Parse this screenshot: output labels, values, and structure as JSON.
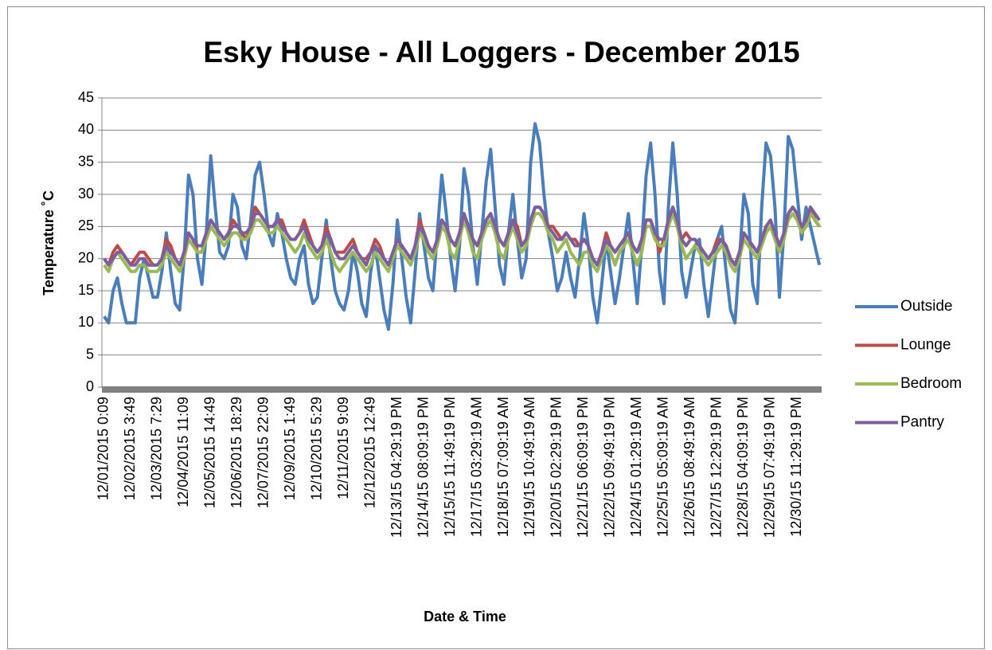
{
  "chart_data": {
    "type": "line",
    "title": "Esky House - All Loggers - December 2015",
    "x_label": "Date & Time",
    "y_label": "Temperature ˚C",
    "categories": [
      "12/01/2015 0:09",
      null,
      null,
      null,
      null,
      null,
      "12/02/2015 3:49",
      null,
      null,
      null,
      null,
      null,
      "12/03/2015 7:29",
      null,
      null,
      null,
      null,
      null,
      "12/04/2015 11:09",
      null,
      null,
      null,
      null,
      null,
      "12/05/2015 14:49",
      null,
      null,
      null,
      null,
      null,
      "12/06/2015 18:29",
      null,
      null,
      null,
      null,
      null,
      "12/07/2015 22:09",
      null,
      null,
      null,
      null,
      null,
      "12/09/2015 1:49",
      null,
      null,
      null,
      null,
      null,
      "12/10/2015 5:29",
      null,
      null,
      null,
      null,
      null,
      "12/11/2015 9:09",
      null,
      null,
      null,
      null,
      null,
      "12/12/2015 12:49",
      null,
      null,
      null,
      null,
      null,
      "12/13/15 04:29:19 PM",
      null,
      null,
      null,
      null,
      null,
      "12/14/15 08:09:19 PM",
      null,
      null,
      null,
      null,
      null,
      "12/15/15 11:49:19 PM",
      null,
      null,
      null,
      null,
      null,
      "12/17/15 03:29:19 AM",
      null,
      null,
      null,
      null,
      null,
      "12/18/15 07:09:19 AM",
      null,
      null,
      null,
      null,
      null,
      "12/19/15 10:49:19 AM",
      null,
      null,
      null,
      null,
      null,
      "12/20/15 02:29:19 PM",
      null,
      null,
      null,
      null,
      null,
      "12/21/15 06:09:19 PM",
      null,
      null,
      null,
      null,
      null,
      "12/22/15 09:49:19 PM",
      null,
      null,
      null,
      null,
      null,
      "12/24/15 01:29:19 AM",
      null,
      null,
      null,
      null,
      null,
      "12/25/15 05:09:19 AM",
      null,
      null,
      null,
      null,
      null,
      "12/26/15 08:49:19 AM",
      null,
      null,
      null,
      null,
      null,
      "12/27/15 12:29:19 PM",
      null,
      null,
      null,
      null,
      null,
      "12/28/15 04:09:19 PM",
      null,
      null,
      null,
      null,
      null,
      "12/29/15 07:49:19 PM",
      null,
      null,
      null,
      null,
      null,
      "12/30/15 11:29:19 PM",
      null,
      null,
      null,
      null,
      null
    ],
    "series": [
      {
        "name": "Outside",
        "color": "#4a7ebb",
        "values": [
          11,
          10,
          15,
          17,
          13,
          10,
          10,
          10,
          17,
          20,
          17,
          14,
          14,
          18,
          24,
          18,
          13,
          12,
          20,
          33,
          30,
          20,
          16,
          24,
          36,
          28,
          21,
          20,
          22,
          30,
          28,
          22,
          20,
          26,
          33,
          35,
          30,
          24,
          22,
          27,
          24,
          20,
          17,
          16,
          20,
          22,
          16,
          13,
          14,
          20,
          26,
          20,
          15,
          13,
          12,
          15,
          21,
          18,
          13,
          11,
          18,
          22,
          17,
          12,
          9,
          16,
          26,
          20,
          14,
          10,
          18,
          27,
          22,
          17,
          15,
          24,
          33,
          27,
          20,
          15,
          22,
          34,
          30,
          22,
          16,
          24,
          32,
          37,
          28,
          19,
          16,
          24,
          30,
          23,
          17,
          20,
          35,
          41,
          38,
          30,
          24,
          20,
          15,
          17,
          21,
          17,
          14,
          20,
          27,
          22,
          14,
          10,
          16,
          23,
          18,
          13,
          17,
          22,
          27,
          20,
          13,
          22,
          33,
          38,
          30,
          18,
          13,
          28,
          38,
          30,
          18,
          14,
          18,
          22,
          23,
          16,
          11,
          17,
          23,
          25,
          18,
          12,
          10,
          20,
          30,
          27,
          16,
          13,
          28,
          38,
          36,
          28,
          14,
          24,
          39,
          37,
          30,
          23,
          28,
          25,
          22,
          19
        ]
      },
      {
        "name": "Lounge",
        "color": "#be4b48",
        "values": [
          20,
          19,
          21,
          22,
          21,
          20,
          19,
          20,
          21,
          21,
          20,
          19,
          19,
          20,
          23,
          22,
          20,
          19,
          21,
          24,
          23,
          21,
          21,
          24,
          26,
          25,
          24,
          23,
          24,
          26,
          25,
          24,
          23,
          25,
          28,
          27,
          26,
          25,
          25,
          26,
          26,
          24,
          23,
          23,
          24,
          26,
          24,
          22,
          21,
          22,
          25,
          23,
          21,
          21,
          21,
          22,
          23,
          21,
          20,
          20,
          21,
          23,
          22,
          20,
          19,
          21,
          23,
          22,
          21,
          20,
          22,
          26,
          24,
          22,
          21,
          23,
          26,
          25,
          23,
          22,
          24,
          27,
          25,
          23,
          22,
          24,
          26,
          27,
          25,
          23,
          22,
          24,
          26,
          25,
          22,
          23,
          26,
          28,
          28,
          27,
          25,
          25,
          24,
          23,
          24,
          23,
          23,
          22,
          23,
          22,
          20,
          19,
          21,
          24,
          22,
          21,
          22,
          23,
          24,
          22,
          21,
          23,
          26,
          26,
          24,
          21,
          23,
          26,
          28,
          25,
          23,
          24,
          23,
          23,
          22,
          21,
          20,
          21,
          23,
          23,
          22,
          20,
          19,
          21,
          24,
          23,
          22,
          21,
          23,
          25,
          26,
          24,
          22,
          23,
          27,
          28,
          27,
          24,
          26,
          28,
          26,
          25
        ]
      },
      {
        "name": "Bedroom",
        "color": "#98b954",
        "values": [
          19,
          18,
          20,
          21,
          20,
          19,
          18,
          18,
          19,
          19,
          18,
          18,
          18,
          19,
          21,
          20,
          19,
          18,
          20,
          23,
          22,
          21,
          21,
          23,
          25,
          24,
          23,
          22,
          23,
          24,
          24,
          23,
          23,
          24,
          26,
          26,
          25,
          24,
          24,
          25,
          24,
          23,
          22,
          21,
          22,
          24,
          22,
          21,
          20,
          21,
          23,
          21,
          19,
          18,
          19,
          20,
          21,
          20,
          19,
          18,
          19,
          21,
          20,
          19,
          18,
          20,
          22,
          21,
          20,
          19,
          21,
          24,
          23,
          21,
          20,
          22,
          25,
          24,
          21,
          20,
          23,
          26,
          24,
          21,
          20,
          23,
          25,
          26,
          24,
          21,
          20,
          23,
          25,
          23,
          21,
          22,
          25,
          27,
          27,
          26,
          24,
          23,
          21,
          22,
          23,
          21,
          20,
          19,
          21,
          21,
          19,
          18,
          20,
          22,
          21,
          19,
          21,
          22,
          23,
          21,
          19,
          21,
          25,
          25,
          23,
          22,
          22,
          25,
          27,
          25,
          22,
          20,
          21,
          22,
          21,
          20,
          19,
          20,
          21,
          22,
          21,
          19,
          18,
          20,
          23,
          22,
          21,
          20,
          22,
          24,
          25,
          23,
          21,
          23,
          26,
          27,
          26,
          24,
          25,
          27,
          26,
          25
        ]
      },
      {
        "name": "Pantry",
        "color": "#7d5fa0",
        "values": [
          20,
          19,
          20,
          21,
          21,
          20,
          19,
          19,
          20,
          20,
          19,
          19,
          19,
          20,
          22,
          21,
          20,
          19,
          21,
          24,
          23,
          22,
          22,
          24,
          26,
          25,
          24,
          23,
          24,
          25,
          25,
          24,
          24,
          25,
          27,
          27,
          26,
          25,
          25,
          26,
          25,
          24,
          23,
          23,
          24,
          25,
          23,
          22,
          21,
          22,
          24,
          23,
          21,
          20,
          20,
          21,
          22,
          21,
          20,
          19,
          21,
          22,
          21,
          20,
          19,
          21,
          23,
          22,
          21,
          20,
          22,
          25,
          24,
          22,
          21,
          23,
          26,
          25,
          23,
          22,
          24,
          27,
          25,
          23,
          22,
          24,
          26,
          27,
          25,
          23,
          22,
          24,
          26,
          24,
          22,
          23,
          26,
          28,
          28,
          27,
          25,
          24,
          23,
          23,
          24,
          23,
          22,
          22,
          23,
          22,
          20,
          19,
          21,
          23,
          22,
          21,
          22,
          23,
          24,
          22,
          21,
          23,
          26,
          26,
          24,
          23,
          23,
          26,
          28,
          26,
          23,
          22,
          23,
          23,
          22,
          21,
          20,
          21,
          22,
          23,
          22,
          20,
          19,
          21,
          24,
          23,
          22,
          21,
          23,
          25,
          26,
          24,
          22,
          24,
          27,
          28,
          27,
          25,
          26,
          28,
          27,
          26
        ]
      }
    ],
    "ylim": [
      0,
      45
    ],
    "yticks": [
      0,
      5,
      10,
      15,
      20,
      25,
      30,
      35,
      40,
      45
    ],
    "grid": true,
    "legend_position": "right"
  }
}
